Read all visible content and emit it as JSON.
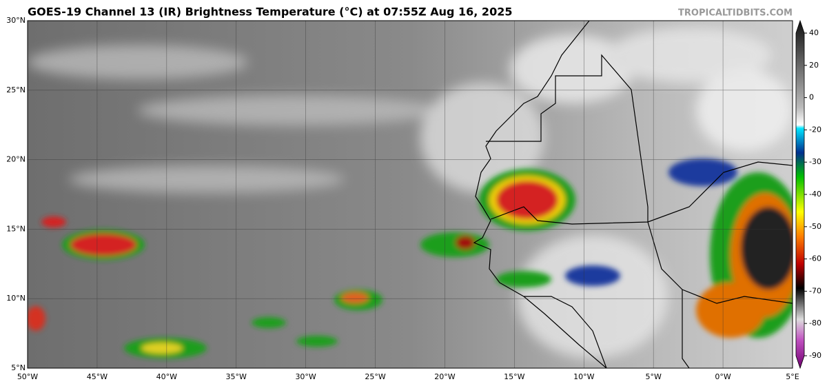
{
  "header": {
    "title": "GOES-19 Channel 13 (IR) Brightness Temperature (°C) at 07:55Z Aug 16, 2025",
    "watermark": "TROPICALTIDBITS.COM"
  },
  "map": {
    "lat_labels": [
      "30°N",
      "25°N",
      "20°N",
      "15°N",
      "10°N",
      "5°N"
    ],
    "lon_labels": [
      "50°W",
      "45°W",
      "40°W",
      "35°W",
      "30°W",
      "25°W",
      "20°W",
      "15°W",
      "10°W",
      "5°W",
      "0°W",
      "5°E"
    ]
  },
  "colorbar": {
    "ticks": [
      40,
      20,
      0,
      -20,
      -30,
      -40,
      -50,
      -60,
      -70,
      -80,
      -90
    ]
  }
}
